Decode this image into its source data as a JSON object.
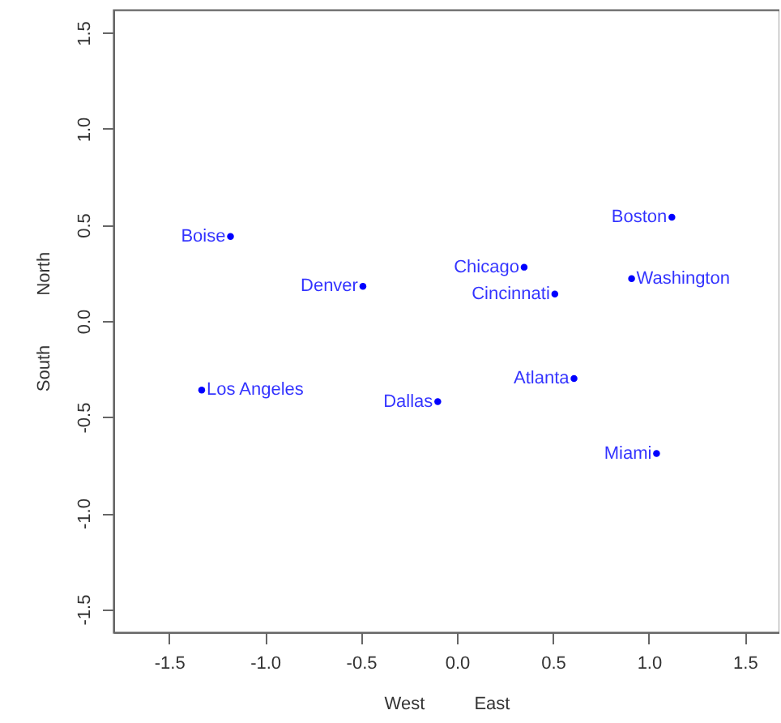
{
  "chart_data": {
    "type": "scatter",
    "xlabel": "West          East",
    "ylabel": "South          North",
    "x": [
      -1.18,
      -0.49,
      0.35,
      0.51,
      1.12,
      0.91,
      -1.33,
      -0.1,
      0.61,
      1.04
    ],
    "series": [
      {
        "color": "#0000ff",
        "values": [
          0.44,
          0.18,
          0.28,
          0.14,
          0.54,
          0.22,
          -0.36,
          -0.42,
          -0.3,
          -0.69
        ]
      }
    ],
    "annotations": [
      {
        "text": "Boise",
        "x": -1.18,
        "y": 0.44
      },
      {
        "text": "Denver",
        "x": -0.49,
        "y": 0.18
      },
      {
        "text": "Chicago",
        "x": 0.35,
        "y": 0.28
      },
      {
        "text": "Cincinnati",
        "x": 0.51,
        "y": 0.14
      },
      {
        "text": "Boston",
        "x": 1.12,
        "y": 0.54
      },
      {
        "text": "Washington",
        "x": 0.91,
        "y": 0.22
      },
      {
        "text": "Los Angeles",
        "x": -1.33,
        "y": -0.36
      },
      {
        "text": "Dallas",
        "x": -0.1,
        "y": -0.42
      },
      {
        "text": "Atlanta",
        "x": 0.61,
        "y": -0.3
      },
      {
        "text": "Miami",
        "x": 1.04,
        "y": -0.69
      }
    ],
    "xlim": [
      -1.79,
      1.68
    ],
    "ylim": [
      -1.62,
      1.62
    ],
    "xticks": [
      {
        "value": -1.5,
        "label": "-1.5"
      },
      {
        "value": -1,
        "label": "-1.0"
      },
      {
        "value": -0.5,
        "label": "-0.5"
      },
      {
        "value": 0,
        "label": "0.0"
      },
      {
        "value": 0.5,
        "label": "0.5"
      },
      {
        "value": 1,
        "label": "1.0"
      },
      {
        "value": 1.5,
        "label": "1.5"
      }
    ],
    "yticks": [
      {
        "value": -1.5,
        "label": "-1.5"
      },
      {
        "value": -1,
        "label": "-1.0"
      },
      {
        "value": -0.5,
        "label": "-0.5"
      },
      {
        "value": 0,
        "label": "0.0"
      },
      {
        "value": 0.5,
        "label": "0.5"
      },
      {
        "value": 1,
        "label": "1.0"
      },
      {
        "value": 1.5,
        "label": "1.5"
      }
    ],
    "marker": "circle",
    "grid": false
  }
}
